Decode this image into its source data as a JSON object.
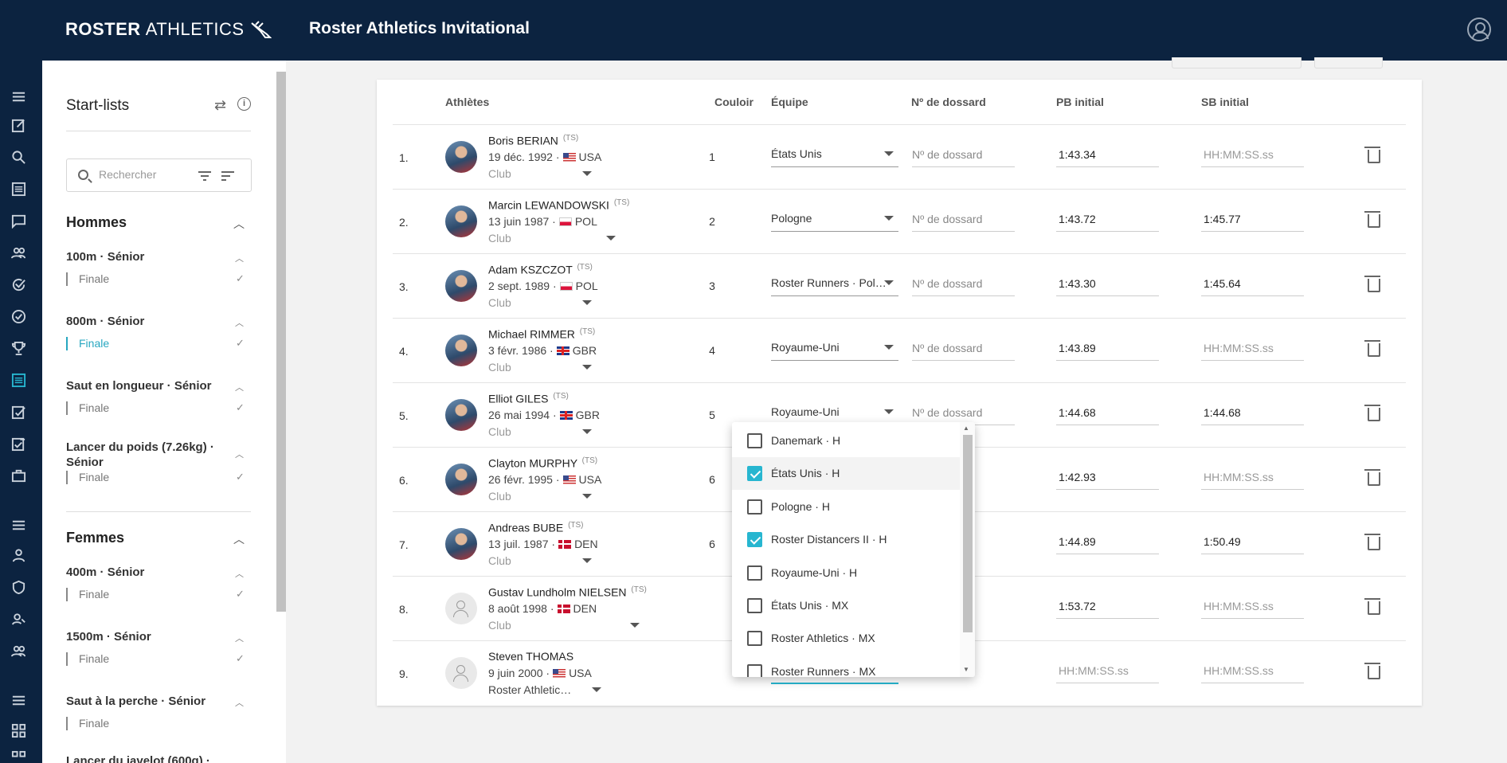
{
  "app": {
    "logo_bold": "ROSTER",
    "logo_light": "ATHLETICS",
    "title": "Roster Athletics Invitational"
  },
  "panel": {
    "title": "Start-lists",
    "search_placeholder": "Rechercher",
    "groups": [
      {
        "label": "Hommes",
        "events": [
          {
            "name": "100m · Sénior",
            "round": "Finale",
            "active": false
          },
          {
            "name": "800m · Sénior",
            "round": "Finale",
            "active": true
          },
          {
            "name": "Saut en longueur · Sénior",
            "round": "Finale",
            "active": false
          },
          {
            "name": "Lancer du poids (7.26kg) · Sénior",
            "round": "Finale",
            "active": false
          }
        ]
      },
      {
        "label": "Femmes",
        "events": [
          {
            "name": "400m · Sénior",
            "round": "Finale",
            "active": false
          },
          {
            "name": "1500m · Sénior",
            "round": "Finale",
            "active": false
          },
          {
            "name": "Saut à la perche · Sénior",
            "round": "Finale",
            "active": false
          },
          {
            "name": "Lancer du javelot (600g) ·",
            "round": "",
            "active": false
          }
        ]
      }
    ]
  },
  "table": {
    "headers": {
      "athletes": "Athlètes",
      "lane": "Couloir",
      "team": "Équipe",
      "bib": "Nº de dossard",
      "pb": "PB initial",
      "sb": "SB initial"
    },
    "bib_placeholder": "Nº de dossard",
    "time_placeholder": "HH:MM:SS.ss",
    "ts_tag": "(TS)",
    "rows": [
      {
        "num": "1.",
        "name": "Boris BERIAN",
        "ts": true,
        "meta": "19 déc. 1992 ·",
        "flag": "usa",
        "country": "USA",
        "club": "Club",
        "lane": "1",
        "team": "États Unis",
        "pb": "1:43.34",
        "sb": "",
        "photo": true
      },
      {
        "num": "2.",
        "name": "Marcin LEWANDOWSKI",
        "ts": true,
        "meta": "13 juin 1987 ·",
        "flag": "pol",
        "country": "POL",
        "club": "Club",
        "lane": "2",
        "team": "Pologne",
        "pb": "1:43.72",
        "sb": "1:45.77",
        "photo": true
      },
      {
        "num": "3.",
        "name": "Adam KSZCZOT",
        "ts": true,
        "meta": "2 sept. 1989 ·",
        "flag": "pol",
        "country": "POL",
        "club": "Club",
        "lane": "3",
        "team": "Roster Runners · Pol…",
        "pb": "1:43.30",
        "sb": "1:45.64",
        "photo": true
      },
      {
        "num": "4.",
        "name": "Michael RIMMER",
        "ts": true,
        "meta": "3 févr. 1986 ·",
        "flag": "gbr",
        "country": "GBR",
        "club": "Club",
        "lane": "4",
        "team": "Royaume-Uni",
        "pb": "1:43.89",
        "sb": "",
        "photo": true
      },
      {
        "num": "5.",
        "name": "Elliot GILES",
        "ts": true,
        "meta": "26 mai 1994 ·",
        "flag": "gbr",
        "country": "GBR",
        "club": "Club",
        "lane": "5",
        "team": "Royaume-Uni",
        "pb": "1:44.68",
        "sb": "1:44.68",
        "photo": true
      },
      {
        "num": "6.",
        "name": "Clayton MURPHY",
        "ts": true,
        "meta": "26 févr. 1995 ·",
        "flag": "usa",
        "country": "USA",
        "club": "Club",
        "lane": "6",
        "team": "",
        "pb": "1:42.93",
        "sb": "",
        "photo": true
      },
      {
        "num": "7.",
        "name": "Andreas BUBE",
        "ts": true,
        "meta": "13 juil. 1987 ·",
        "flag": "den",
        "country": "DEN",
        "club": "Club",
        "lane": "6",
        "team": "",
        "pb": "1:44.89",
        "sb": "1:50.49",
        "photo": true
      },
      {
        "num": "8.",
        "name": "Gustav Lundholm NIELSEN",
        "ts": true,
        "meta": "8 août 1998 ·",
        "flag": "den",
        "country": "DEN",
        "club": "Club",
        "lane": "",
        "team": "",
        "pb": "1:53.72",
        "sb": "",
        "photo": false
      },
      {
        "num": "9.",
        "name": "Steven THOMAS",
        "ts": false,
        "meta": "9 juin 2000 ·",
        "flag": "usa",
        "country": "USA",
        "club": "Roster Athletic…",
        "lane": "",
        "team": "",
        "pb": "",
        "sb": "",
        "photo": false
      }
    ]
  },
  "dropdown": {
    "items": [
      {
        "label": "Danemark · H",
        "checked": false
      },
      {
        "label": "États Unis · H",
        "checked": true
      },
      {
        "label": "Pologne · H",
        "checked": false
      },
      {
        "label": "Roster Distancers II · H",
        "checked": true
      },
      {
        "label": "Royaume-Uni · H",
        "checked": false
      },
      {
        "label": "États Unis · MX",
        "checked": false
      },
      {
        "label": "Roster Athletics · MX",
        "checked": false
      },
      {
        "label": "Roster Runners · MX",
        "checked": false
      }
    ]
  },
  "colors": {
    "navy": "#0c2340",
    "accent": "#27b6d0"
  }
}
